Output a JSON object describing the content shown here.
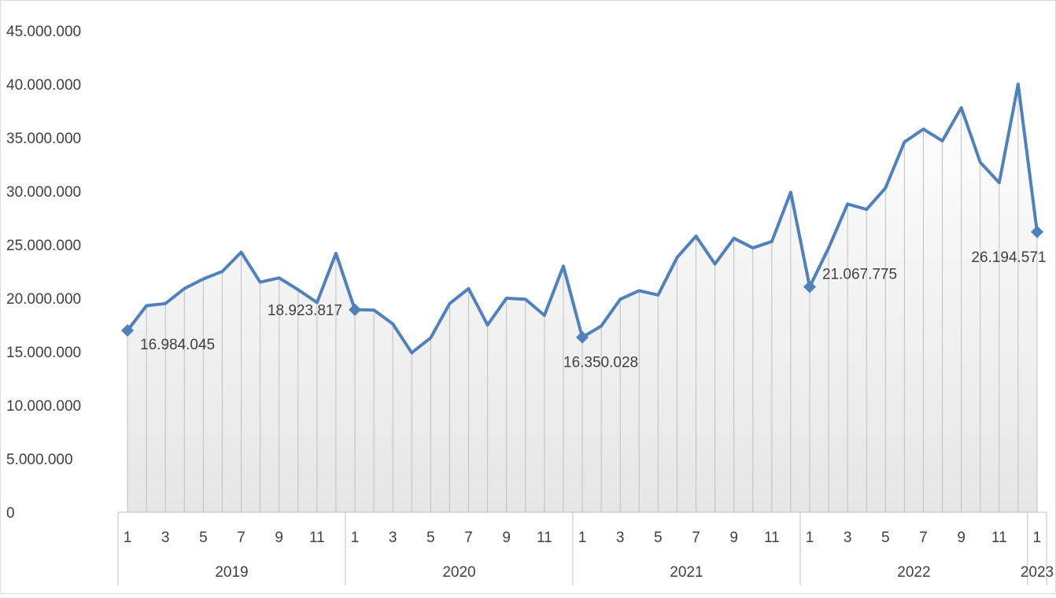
{
  "chart_data": {
    "type": "line",
    "title": "",
    "xlabel": "",
    "ylabel": "",
    "ylim": [
      0,
      45000000
    ],
    "yticks": [
      0,
      5000000,
      10000000,
      15000000,
      20000000,
      25000000,
      30000000,
      35000000,
      40000000,
      45000000
    ],
    "ytick_labels": [
      "0",
      "5.000.000",
      "10.000.000",
      "15.000.000",
      "20.000.000",
      "25.000.000",
      "30.000.000",
      "35.000.000",
      "40.000.000",
      "45.000.000"
    ],
    "grid": false,
    "drop_lines": true,
    "years": [
      {
        "label": "2019",
        "months": 12
      },
      {
        "label": "2020",
        "months": 12
      },
      {
        "label": "2021",
        "months": 12
      },
      {
        "label": "2022",
        "months": 12
      },
      {
        "label": "2023",
        "months": 1
      }
    ],
    "month_tick_labels": [
      "1",
      "3",
      "5",
      "7",
      "9",
      "11",
      "1",
      "3",
      "5",
      "7",
      "9",
      "11",
      "1",
      "3",
      "5",
      "7",
      "9",
      "11",
      "1",
      "3",
      "5",
      "7",
      "9",
      "11",
      "1"
    ],
    "values": [
      16984045,
      19300000,
      19500000,
      20900000,
      21800000,
      22500000,
      24300000,
      21500000,
      21900000,
      20800000,
      19600000,
      24200000,
      18923817,
      18900000,
      17600000,
      14900000,
      16300000,
      19500000,
      20900000,
      17500000,
      20000000,
      19900000,
      18400000,
      23000000,
      16350028,
      17400000,
      19900000,
      20700000,
      20300000,
      23800000,
      25800000,
      23200000,
      25600000,
      24700000,
      25300000,
      29900000,
      21067775,
      24700000,
      28800000,
      28300000,
      30300000,
      34600000,
      35800000,
      34700000,
      37800000,
      32700000,
      30800000,
      40000000,
      26194571
    ],
    "data_labels": [
      {
        "index": 0,
        "text": "16.984.045"
      },
      {
        "index": 12,
        "text": "18.923.817"
      },
      {
        "index": 24,
        "text": "16.350.028"
      },
      {
        "index": 36,
        "text": "21.067.775"
      },
      {
        "index": 48,
        "text": "26.194.571"
      }
    ],
    "colors": {
      "line": "#4f81bd",
      "marker": "#4f81bd",
      "drop_line": "#bfbfbf",
      "axis": "#bfbfbf",
      "area_top": "#ffffff",
      "area_bottom": "#e6e6e6",
      "border": "#d9d9d9"
    }
  }
}
